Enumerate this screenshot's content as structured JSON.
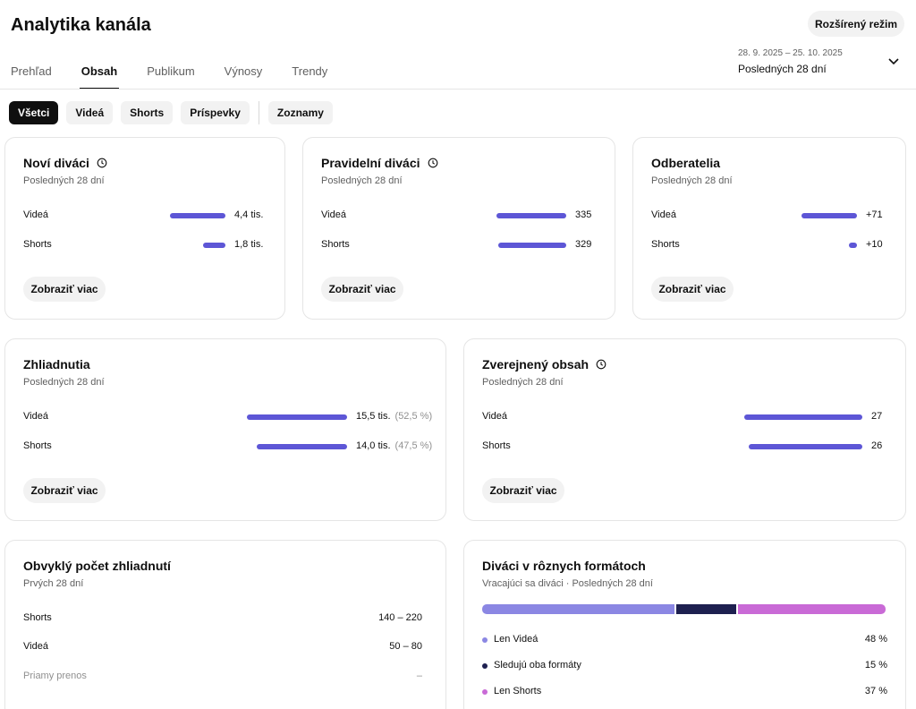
{
  "header": {
    "title": "Analytika kanála",
    "advanced_button": "Rozšírený režim"
  },
  "tabs": [
    {
      "label": "Prehľad"
    },
    {
      "label": "Obsah"
    },
    {
      "label": "Publikum"
    },
    {
      "label": "Výnosy"
    },
    {
      "label": "Trendy"
    }
  ],
  "active_tab": "Obsah",
  "date_range": {
    "dates": "28. 9. 2025 – 25. 10. 2025",
    "label": "Posledných 28 dní"
  },
  "chips": [
    {
      "label": "Všetci",
      "active": true
    },
    {
      "label": "Videá",
      "active": false
    },
    {
      "label": "Shorts",
      "active": false
    },
    {
      "label": "Príspevky",
      "active": false
    },
    {
      "label": "Zoznamy",
      "active": false
    }
  ],
  "colors": {
    "bar": "#5d56d6",
    "only_videos": "#8b87e3",
    "both_formats": "#1e2050",
    "only_shorts": "#c96ad6"
  },
  "cards": {
    "new_viewers": {
      "title": "Noví diváci",
      "subtitle": "Posledných 28 dní",
      "button": "Zobraziť viac",
      "rows": [
        {
          "label": "Videá",
          "value": "4,4 tis.",
          "fraction": 1.0
        },
        {
          "label": "Shorts",
          "value": "1,8 tis.",
          "fraction": 0.41
        }
      ]
    },
    "regular_viewers": {
      "title": "Pravidelní diváci",
      "subtitle": "Posledných 28 dní",
      "button": "Zobraziť viac",
      "rows": [
        {
          "label": "Videá",
          "value": "335",
          "fraction": 1.0
        },
        {
          "label": "Shorts",
          "value": "329",
          "fraction": 0.98
        }
      ]
    },
    "subscribers": {
      "title": "Odberatelia",
      "subtitle": "Posledných 28 dní",
      "button": "Zobraziť viac",
      "rows": [
        {
          "label": "Videá",
          "value": "+71",
          "fraction": 1.0
        },
        {
          "label": "Shorts",
          "value": "+10",
          "fraction": 0.14
        }
      ]
    },
    "views": {
      "title": "Zhliadnutia",
      "subtitle": "Posledných 28 dní",
      "button": "Zobraziť viac",
      "rows": [
        {
          "label": "Videá",
          "value": "15,5 tis.",
          "pct": "(52,5 %)",
          "fraction": 1.0
        },
        {
          "label": "Shorts",
          "value": "14,0 tis.",
          "pct": "(47,5 %)",
          "fraction": 0.9
        }
      ]
    },
    "published": {
      "title": "Zverejnený obsah",
      "subtitle": "Posledných 28 dní",
      "button": "Zobraziť viac",
      "rows": [
        {
          "label": "Videá",
          "value": "27",
          "fraction": 1.0
        },
        {
          "label": "Shorts",
          "value": "26",
          "fraction": 0.96
        }
      ]
    },
    "typical_views": {
      "title": "Obvyklý počet zhliadnutí",
      "subtitle": "Prvých 28 dní",
      "rows": [
        {
          "label": "Shorts",
          "value": "140 – 220"
        },
        {
          "label": "Videá",
          "value": "50 – 80"
        },
        {
          "label": "Priamy prenos",
          "value": "–"
        }
      ]
    },
    "formats": {
      "title": "Diváci v rôznych formátoch",
      "subtitle": "Vracajúci sa diváci · Posledných 28 dní",
      "segments": [
        {
          "label": "Len Videá",
          "value": "48 %",
          "fraction": 0.48
        },
        {
          "label": "Sledujú oba formáty",
          "value": "15 %",
          "fraction": 0.15
        },
        {
          "label": "Len Shorts",
          "value": "37 %",
          "fraction": 0.37
        }
      ]
    }
  }
}
